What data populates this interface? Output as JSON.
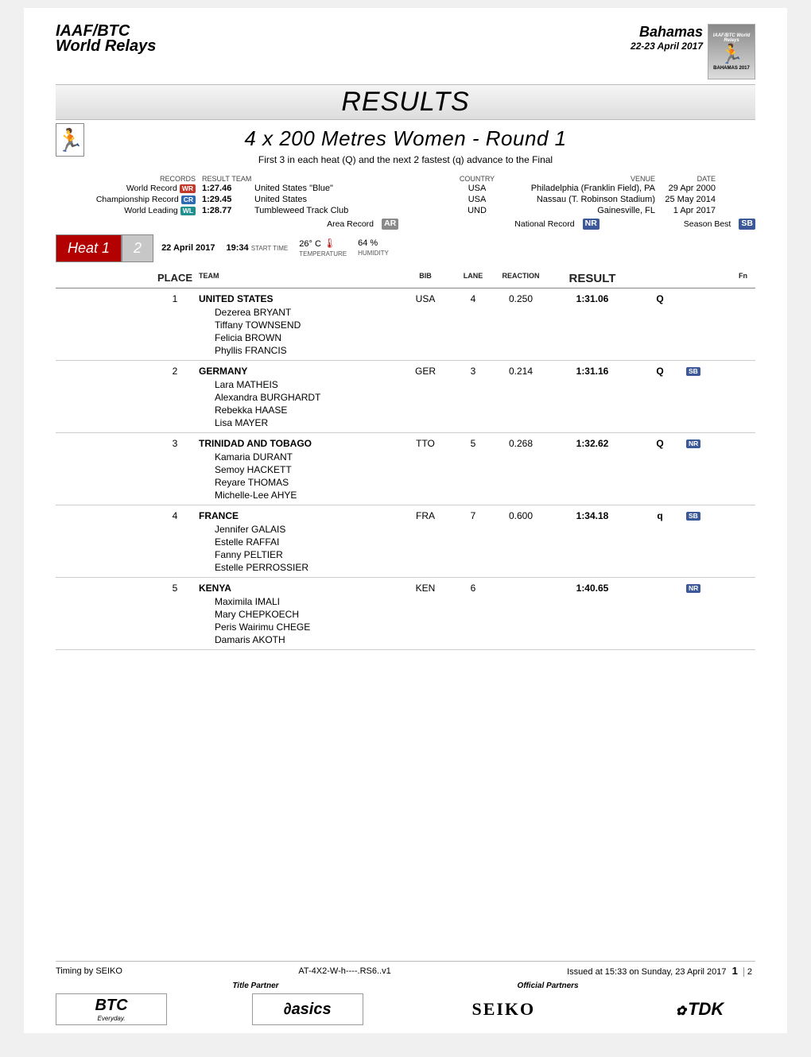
{
  "header": {
    "org_line1": "IAAF/BTC",
    "org_line2": "World Relays",
    "location": "Bahamas",
    "dates": "22-23 April 2017",
    "banner_top": "IAAF/BTC World Relays",
    "banner_bottom": "BAHAMAS 2017"
  },
  "title": "RESULTS",
  "event_title": "4 x 200 Metres Women - Round 1",
  "qual_note": "First 3 in each heat (Q) and the next 2 fastest (q) advance to the Final",
  "records_headers": {
    "records": "RECORDS",
    "result": "RESULT",
    "team": "TEAM",
    "country": "COUNTRY",
    "venue": "VENUE",
    "date": "DATE"
  },
  "records": [
    {
      "label": "World Record",
      "badge": "WR",
      "badge_cls": "red",
      "result": "1:27.46",
      "team": "United States \"Blue\"",
      "country": "USA",
      "venue": "Philadelphia (Franklin Field), PA",
      "date": "29 Apr 2000"
    },
    {
      "label": "Championship Record",
      "badge": "CR",
      "badge_cls": "blue",
      "result": "1:29.45",
      "team": "United States",
      "country": "USA",
      "venue": "Nassau (T. Robinson Stadium)",
      "date": "25 May 2014"
    },
    {
      "label": "World Leading",
      "badge": "WL",
      "badge_cls": "teal",
      "result": "1:28.77",
      "team": "Tumbleweed Track Club",
      "country": "UND",
      "venue": "Gainesville, FL",
      "date": "1 Apr 2017"
    }
  ],
  "toggles": {
    "area": "Area Record",
    "area_badge": "AR",
    "national": "National Record",
    "national_badge": "NR",
    "season": "Season Best",
    "season_badge": "SB"
  },
  "heat": {
    "active_label": "Heat 1",
    "inactive_label": "2",
    "date": "22 April  2017",
    "start_time": "19:34",
    "start_time_label": "START TIME",
    "temp": "26° C",
    "temp_label": "TEMPERATURE",
    "humidity": "64 %",
    "humidity_label": "HUMIDITY"
  },
  "columns": {
    "place": "PLACE",
    "team": "TEAM",
    "bib": "BIB",
    "lane": "LANE",
    "reaction": "REACTION",
    "result": "RESULT",
    "fn": "Fn"
  },
  "results": [
    {
      "place": "1",
      "team": "UNITED STATES",
      "bib": "USA",
      "lane": "4",
      "reaction": "0.250",
      "result": "1:31.06",
      "q": "Q",
      "flag": "",
      "flag_cls": "",
      "athletes": [
        "Dezerea BRYANT",
        "Tiffany TOWNSEND",
        "Felicia BROWN",
        "Phyllis FRANCIS"
      ]
    },
    {
      "place": "2",
      "team": "GERMANY",
      "bib": "GER",
      "lane": "3",
      "reaction": "0.214",
      "result": "1:31.16",
      "q": "Q",
      "flag": "SB",
      "flag_cls": "navy",
      "athletes": [
        "Lara MATHEIS",
        "Alexandra BURGHARDT",
        "Rebekka HAASE",
        "Lisa MAYER"
      ]
    },
    {
      "place": "3",
      "team": "TRINIDAD AND TOBAGO",
      "bib": "TTO",
      "lane": "5",
      "reaction": "0.268",
      "result": "1:32.62",
      "q": "Q",
      "flag": "NR",
      "flag_cls": "navy",
      "athletes": [
        "Kamaria DURANT",
        "Semoy HACKETT",
        "Reyare THOMAS",
        "Michelle-Lee AHYE"
      ]
    },
    {
      "place": "4",
      "team": "FRANCE",
      "bib": "FRA",
      "lane": "7",
      "reaction": "0.600",
      "result": "1:34.18",
      "q": "q",
      "flag": "SB",
      "flag_cls": "navy",
      "athletes": [
        "Jennifer GALAIS",
        "Estelle RAFFAI",
        "Fanny PELTIER",
        "Estelle PERROSSIER"
      ]
    },
    {
      "place": "5",
      "team": "KENYA",
      "bib": "KEN",
      "lane": "6",
      "reaction": "",
      "result": "1:40.65",
      "q": "",
      "flag": "NR",
      "flag_cls": "navy",
      "athletes": [
        "Maximila IMALI",
        "Mary CHEPKOECH",
        "Peris Wairimu CHEGE",
        "Damaris AKOTH"
      ]
    }
  ],
  "footer": {
    "timing": "Timing by SEIKO",
    "code": "AT-4X2-W-h----.RS6..v1",
    "issued": "Issued at 15:33 on Sunday, 23 April  2017",
    "page_current": "1",
    "page_total": "2",
    "title_partner_label": "Title Partner",
    "official_partners_label": "Official Partners",
    "partners": {
      "btc": "BTC",
      "btc_sub": "Everyday.",
      "asics": "asics",
      "seiko": "SEIKO",
      "tdk": "TDK"
    }
  }
}
